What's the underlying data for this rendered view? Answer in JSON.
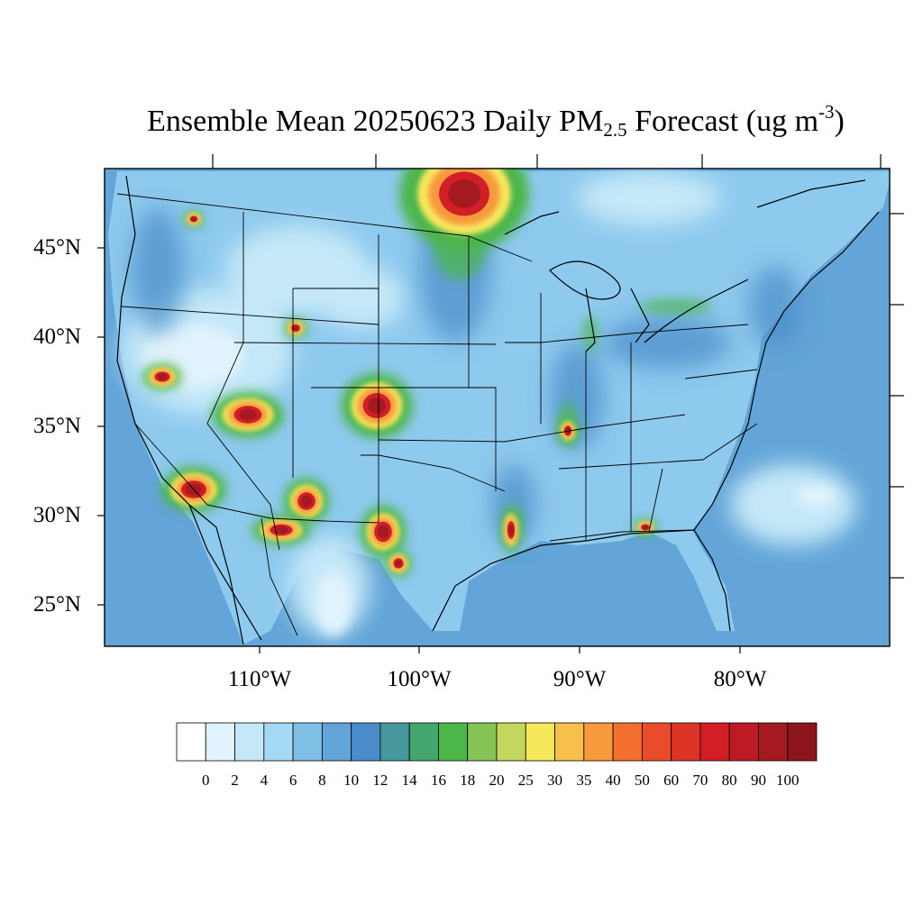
{
  "title": {
    "prefix": "Ensemble Mean 20250623 Daily PM",
    "sub": "2.5",
    "middle": " Forecast (ug m",
    "sup": "-3",
    "suffix": ")"
  },
  "axes": {
    "lat_labels": [
      "45°N",
      "40°N",
      "35°N",
      "30°N",
      "25°N"
    ],
    "lon_labels": [
      "110°W",
      "100°W",
      "90°W",
      "80°W"
    ]
  },
  "colorbar": {
    "labels": [
      "0",
      "2",
      "4",
      "6",
      "8",
      "10",
      "12",
      "14",
      "16",
      "18",
      "20",
      "25",
      "30",
      "35",
      "40",
      "50",
      "60",
      "70",
      "80",
      "90",
      "100"
    ],
    "colors": [
      "#ffffff",
      "#e1f3fc",
      "#c4e8f8",
      "#a3d9f4",
      "#7fbfe5",
      "#63a5d8",
      "#4a8bc9",
      "#47989d",
      "#45a56f",
      "#4cb64a",
      "#86c555",
      "#c3d65e",
      "#f6e75b",
      "#f8c04b",
      "#f79a3e",
      "#f26f30",
      "#e84c2a",
      "#de3327",
      "#d21f27",
      "#bd1a24",
      "#a51920",
      "#8b151a"
    ]
  },
  "map_colors": {
    "ocean": "#63a5d8",
    "land": "#8ec9ee",
    "light": "#c4e8f8",
    "very_light": "#e1f3fc",
    "moderate": "#4a8bc9",
    "green": "#4cb64a",
    "yellow": "#f6e75b",
    "orange": "#f79a3e",
    "red": "#d21f27",
    "dark_red": "#a51920"
  }
}
